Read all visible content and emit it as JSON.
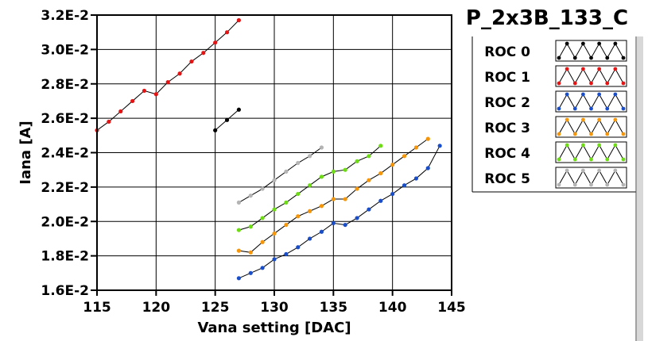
{
  "chart_data": {
    "type": "line",
    "title": "P_2x3B_133_C",
    "xlabel": "Vana setting [DAC]",
    "ylabel": "Iana [A]",
    "xlim": [
      115,
      145
    ],
    "ylim": [
      0.016,
      0.032
    ],
    "x_ticks": [
      115,
      120,
      125,
      130,
      135,
      140,
      145
    ],
    "x_tick_labels": [
      "115",
      "120",
      "125",
      "130",
      "135",
      "140",
      "145"
    ],
    "y_ticks": [
      0.016,
      0.018,
      0.02,
      0.022,
      0.024,
      0.026,
      0.028,
      0.03,
      0.032
    ],
    "y_tick_labels": [
      "1.6E-2",
      "1.8E-2",
      "2.0E-2",
      "2.2E-2",
      "2.4E-2",
      "2.6E-2",
      "2.8E-2",
      "3.0E-2",
      "3.2E-2"
    ],
    "grid": true,
    "legend_position": "right",
    "series": [
      {
        "name": "ROC 0",
        "color": "#000000",
        "x": [
          125,
          126,
          127
        ],
        "y": [
          0.0253,
          0.0259,
          0.0265
        ]
      },
      {
        "name": "ROC 1",
        "color": "#e41414",
        "x": [
          115,
          116,
          117,
          118,
          119,
          120,
          121,
          122,
          123,
          124,
          125,
          126,
          127
        ],
        "y": [
          0.0253,
          0.0258,
          0.0264,
          0.027,
          0.0276,
          0.0274,
          0.0281,
          0.0286,
          0.0293,
          0.0298,
          0.0304,
          0.031,
          0.0317
        ]
      },
      {
        "name": "ROC 2",
        "color": "#1a4ec8",
        "x": [
          127,
          128,
          129,
          130,
          131,
          132,
          133,
          134,
          135,
          136,
          137,
          138,
          139,
          140,
          141,
          142,
          143,
          144
        ],
        "y": [
          0.0167,
          0.017,
          0.0173,
          0.0178,
          0.0181,
          0.0185,
          0.019,
          0.0194,
          0.0199,
          0.0198,
          0.0202,
          0.0207,
          0.0212,
          0.0216,
          0.0221,
          0.0225,
          0.0231,
          0.0244
        ]
      },
      {
        "name": "ROC 3",
        "color": "#f5960a",
        "x": [
          127,
          128,
          129,
          130,
          131,
          132,
          133,
          134,
          135,
          136,
          137,
          138,
          139,
          140,
          141,
          142,
          143
        ],
        "y": [
          0.0183,
          0.0182,
          0.0188,
          0.0193,
          0.0198,
          0.0203,
          0.0206,
          0.0209,
          0.0213,
          0.0213,
          0.0219,
          0.0224,
          0.0228,
          0.0233,
          0.0238,
          0.0243,
          0.0248
        ]
      },
      {
        "name": "ROC 4",
        "color": "#6edc14",
        "x": [
          127,
          128,
          129,
          130,
          131,
          132,
          133,
          134,
          135,
          136,
          137,
          138,
          139
        ],
        "y": [
          0.0195,
          0.0197,
          0.0202,
          0.0207,
          0.0211,
          0.0216,
          0.0221,
          0.0226,
          0.0229,
          0.023,
          0.0235,
          0.0238,
          0.0244
        ]
      },
      {
        "name": "ROC 5",
        "color": "#b4b4b4",
        "x": [
          127,
          128,
          129,
          130,
          131,
          132,
          133,
          134
        ],
        "y": [
          0.0211,
          0.0215,
          0.0219,
          0.0224,
          0.0229,
          0.0234,
          0.0238,
          0.0243
        ]
      }
    ]
  }
}
